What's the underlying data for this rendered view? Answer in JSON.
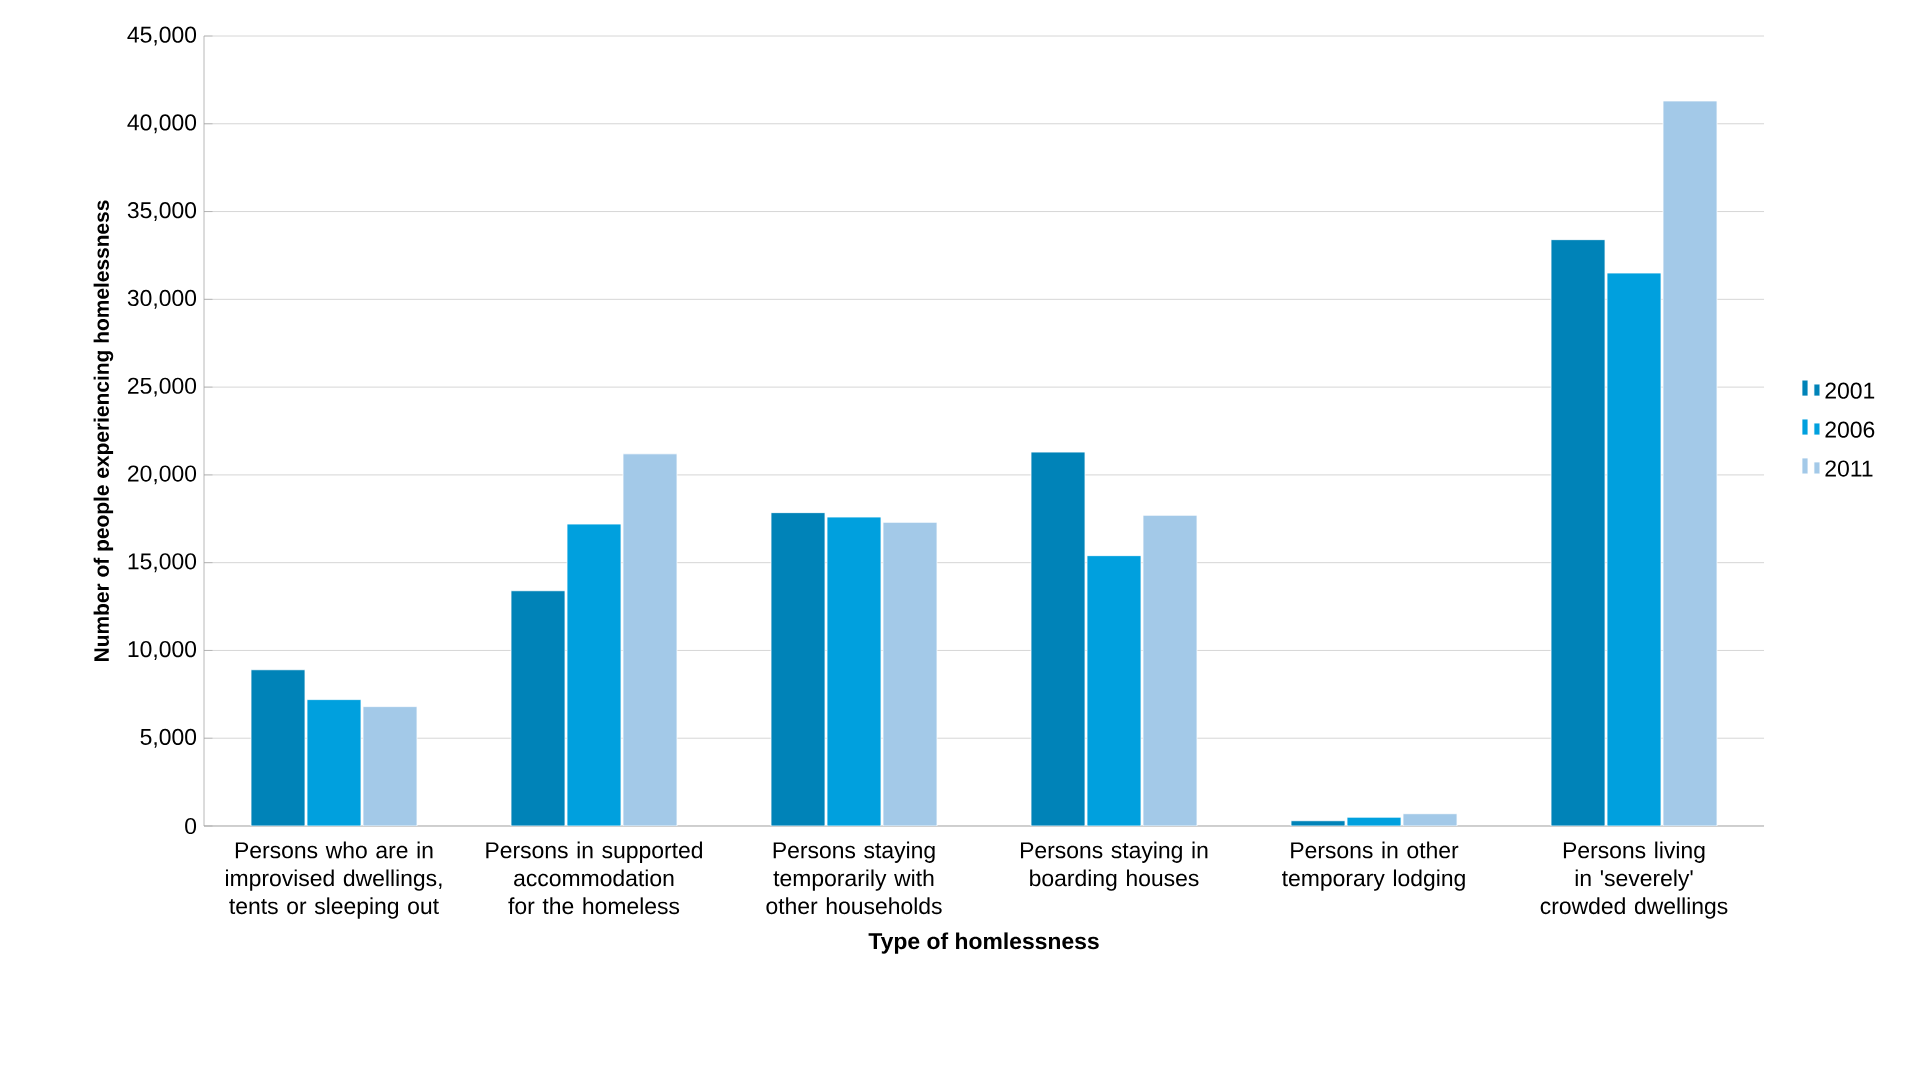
{
  "chart_data": {
    "type": "bar",
    "xlabel": "Type of homlessness",
    "ylabel": "Number of people experiencing homelessness",
    "categories": [
      "Persons who are in improvised dwellings, tents or sleeping out",
      "Persons in supported accommodation for the homeless",
      "Persons staying temporarily with other households",
      "Persons staying in boarding houses",
      "Persons in other temporary lodging",
      "Persons living in 'severely' crowded dwellings"
    ],
    "series": [
      {
        "name": "2001",
        "color": "#0083b8",
        "values": [
          8900,
          13400,
          17850,
          21300,
          300,
          33400
        ]
      },
      {
        "name": "2006",
        "color": "#00a0de",
        "values": [
          7200,
          17200,
          17600,
          15400,
          500,
          31500
        ]
      },
      {
        "name": "2011",
        "color": "#a3c9e8",
        "values": [
          6800,
          21200,
          17300,
          17700,
          700,
          41300
        ]
      }
    ],
    "ylim": [
      0,
      45000
    ],
    "yticks": [
      {
        "value": 0,
        "label": "0"
      },
      {
        "value": 5000,
        "label": "5,000"
      },
      {
        "value": 10000,
        "label": "10,000"
      },
      {
        "value": 15000,
        "label": "15,000"
      },
      {
        "value": 20000,
        "label": "20,000"
      },
      {
        "value": 25000,
        "label": "25,000"
      },
      {
        "value": 30000,
        "label": "30,000"
      },
      {
        "value": 35000,
        "label": "35,000"
      },
      {
        "value": 40000,
        "label": "40,000"
      },
      {
        "value": 45000,
        "label": "45,000"
      }
    ],
    "grid": "y",
    "legend": "right"
  }
}
